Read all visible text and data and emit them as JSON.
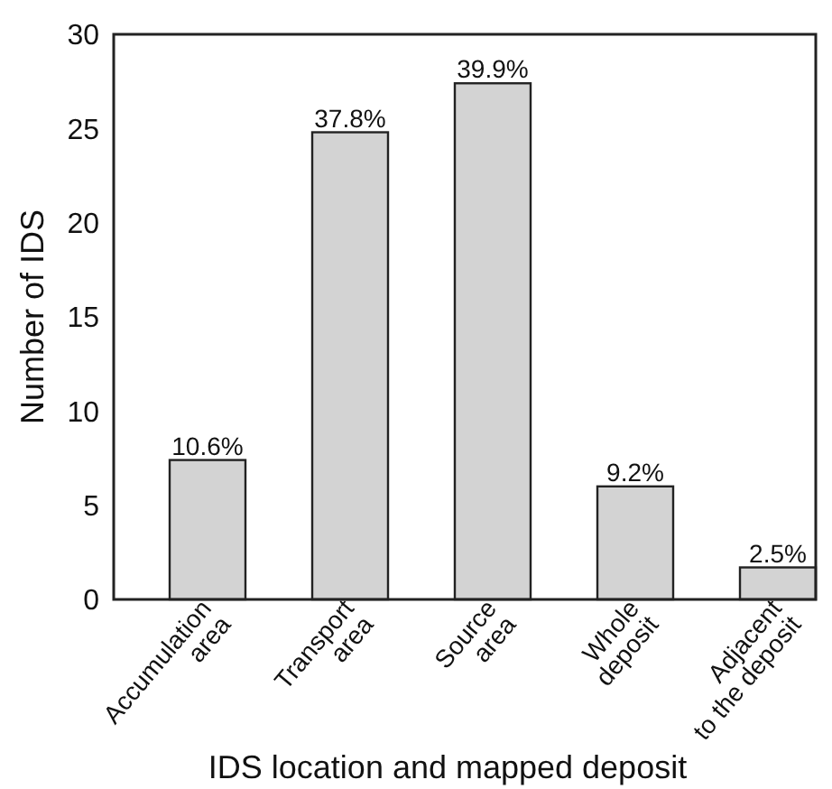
{
  "chart_data": {
    "type": "bar",
    "xlabel": "IDS location and mapped deposit",
    "ylabel": "Number of IDS",
    "categories": [
      "Accumulation\narea",
      "Transport\narea",
      "Source\narea",
      "Whole\ndeposit",
      "Adjacent\nto the deposit"
    ],
    "values": [
      7.4,
      24.8,
      27.4,
      6.0,
      1.7
    ],
    "color": "#d3d3d3",
    "annotations": [
      {
        "text": "10.6%",
        "x": "Accumulation\narea",
        "y": 7.4
      },
      {
        "text": "37.8%",
        "x": "Transport\narea",
        "y": 24.8
      },
      {
        "text": "39.9%",
        "x": "Source\narea",
        "y": 27.4
      },
      {
        "text": "9.2%",
        "x": "Whole\ndeposit",
        "y": 6.0
      },
      {
        "text": "2.5%",
        "x": "Adjacent\nto the deposit",
        "y": 1.7
      }
    ],
    "ylim": [
      0,
      30
    ],
    "yticks": [
      0,
      5,
      10,
      15,
      20,
      25,
      30
    ],
    "grid": false
  }
}
